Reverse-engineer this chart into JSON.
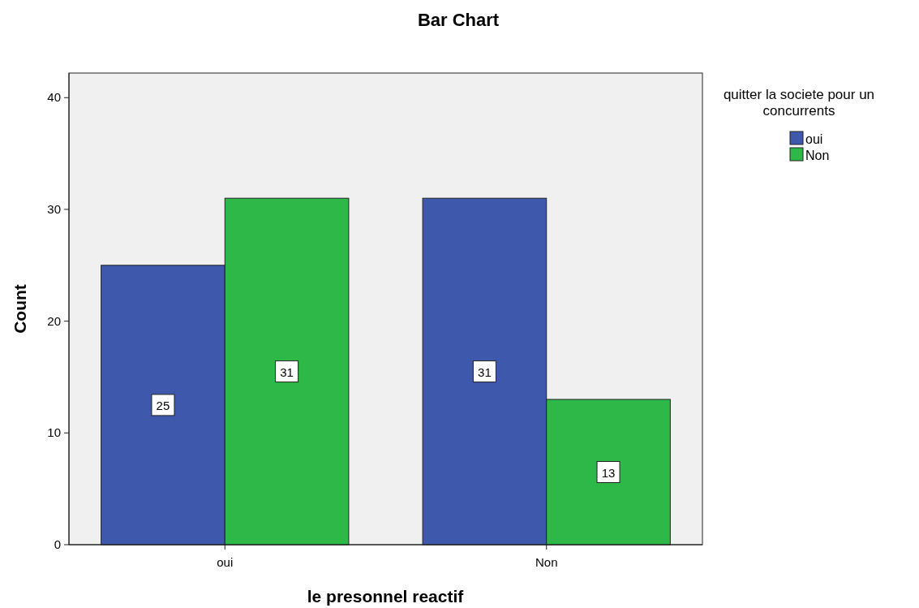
{
  "chart_data": {
    "type": "bar",
    "title": "Bar Chart",
    "xlabel": "le presonnel reactif",
    "ylabel": "Count",
    "legend_title": "quitter la societe pour un concurrents",
    "categories": [
      "oui",
      "Non"
    ],
    "series": [
      {
        "name": "oui",
        "color": "#3e58ac",
        "values": [
          25,
          31
        ]
      },
      {
        "name": "Non",
        "color": "#2eb848",
        "values": [
          31,
          13
        ]
      }
    ],
    "ylim": [
      0,
      42.2
    ],
    "yticks": [
      0,
      10,
      20,
      30,
      40
    ],
    "grid": false,
    "legend": "right",
    "data_labels": true
  }
}
